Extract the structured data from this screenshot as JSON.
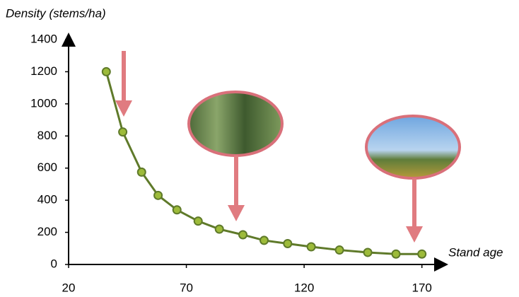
{
  "chart_data": {
    "type": "line",
    "y_axis_label": "Density (stems/ha)",
    "x_axis_label": "Stand age",
    "x": [
      36,
      43,
      51,
      58,
      66,
      75,
      84,
      94,
      103,
      113,
      123,
      135,
      147,
      159,
      170
    ],
    "series": [
      {
        "color": "#5f7a2a",
        "marker_color": "#9dbb3a",
        "values": [
          1200,
          825,
          575,
          430,
          340,
          270,
          220,
          185,
          150,
          130,
          110,
          90,
          75,
          65,
          65
        ]
      }
    ],
    "xlim": [
      20,
      180
    ],
    "xticks": [
      20,
      70,
      120,
      170
    ],
    "ylim": [
      0,
      1400
    ],
    "yticks": [
      0,
      200,
      400,
      600,
      800,
      1000,
      1200,
      1400
    ],
    "grid": false
  }
}
